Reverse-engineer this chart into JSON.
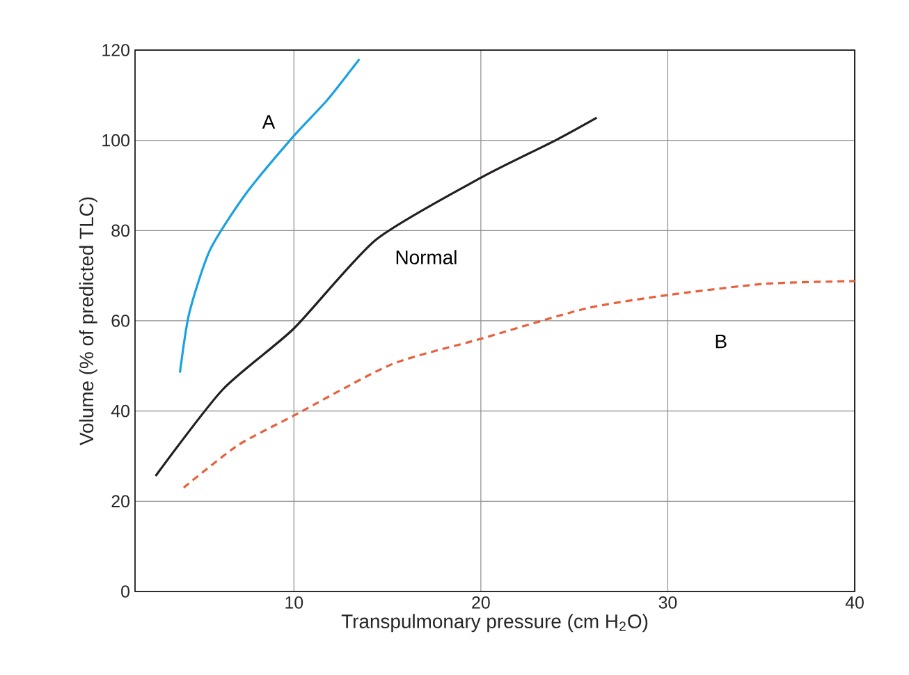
{
  "chart_data": {
    "type": "line",
    "xlabel": "Transpulmonary pressure (cm H$_{2}$O)",
    "ylabel": "Volume (% of predicted TLC)",
    "xlim": [
      1.5,
      40
    ],
    "ylim": [
      0,
      120
    ],
    "xticks": [
      10,
      20,
      30,
      40
    ],
    "yticks": [
      0,
      20,
      40,
      60,
      80,
      100,
      120
    ],
    "grid": true,
    "legend": false,
    "series": [
      {
        "name": "A",
        "color": "#1ba1e2",
        "line_style": "solid",
        "x": [
          3.9,
          4.4,
          5.5,
          7.4,
          10,
          11.8,
          13.5
        ],
        "values": [
          48.5,
          61.7,
          75.6,
          88,
          101,
          109,
          118
        ]
      },
      {
        "name": "Normal",
        "color": "#231f20",
        "line_style": "solid",
        "x": [
          2.6,
          6.2,
          10,
          14.4,
          20,
          24,
          26.2
        ],
        "values": [
          25.6,
          44.8,
          58.3,
          78,
          91.7,
          100,
          105
        ]
      },
      {
        "name": "B",
        "color": "#e8603c",
        "line_style": "dashed",
        "x": [
          4.1,
          7,
          10,
          15.2,
          20,
          25.6,
          30,
          35.2,
          40
        ],
        "values": [
          23,
          32.4,
          39,
          50.3,
          56,
          62.7,
          65.7,
          68.2,
          68.8
        ]
      }
    ]
  }
}
